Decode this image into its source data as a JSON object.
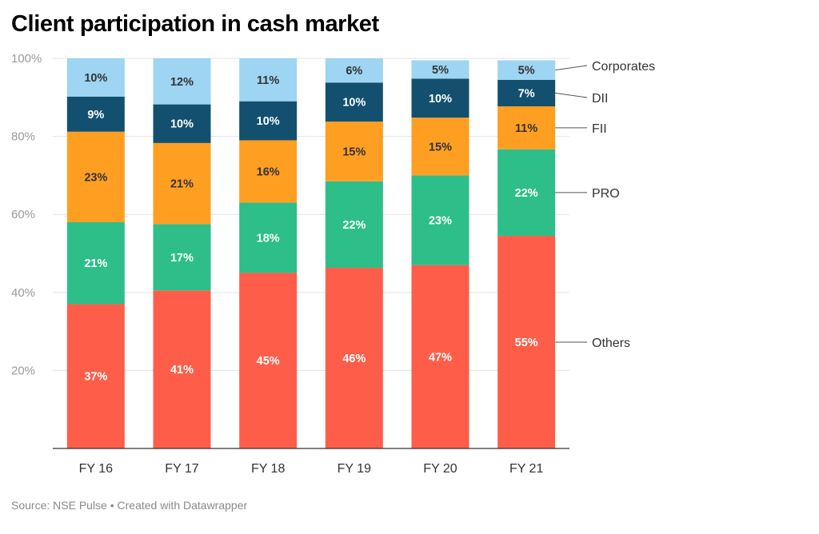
{
  "title": "Client participation in cash market",
  "footer": "Source: NSE Pulse • Created with Datawrapper",
  "chart_data": {
    "type": "bar",
    "stacked": true,
    "categories": [
      "FY 16",
      "FY 17",
      "FY 18",
      "FY 19",
      "FY 20",
      "FY 21"
    ],
    "ylim": [
      0,
      100
    ],
    "yticks": [
      20,
      40,
      60,
      80,
      100
    ],
    "ytick_labels": [
      "20%",
      "40%",
      "60%",
      "80%",
      "100%"
    ],
    "grid": true,
    "legend_placement": "right, labels aligned to series in last bar",
    "series": [
      {
        "name": "Others",
        "color": "#fe5e49",
        "label_color": "#ffffff",
        "values": [
          37,
          40.5,
          45,
          46.3,
          47,
          54.5
        ],
        "labels": [
          "37%",
          "41%",
          "45%",
          "46%",
          "47%",
          "55%"
        ]
      },
      {
        "name": "PRO",
        "color": "#2dbe8a",
        "label_color": "#ffffff",
        "values": [
          21,
          17,
          18,
          22.2,
          23,
          22.2
        ],
        "labels": [
          "21%",
          "17%",
          "18%",
          "22%",
          "23%",
          "22%"
        ]
      },
      {
        "name": "FII",
        "color": "#fe9f22",
        "label_color": "#333333",
        "values": [
          23.2,
          20.8,
          16,
          15.3,
          14.8,
          11
        ],
        "labels": [
          "23%",
          "21%",
          "16%",
          "15%",
          "15%",
          "11%"
        ]
      },
      {
        "name": "DII",
        "color": "#13506f",
        "label_color": "#ffffff",
        "values": [
          9,
          9.9,
          10,
          10,
          10,
          6.8
        ],
        "labels": [
          "9%",
          "10%",
          "10%",
          "10%",
          "10%",
          "7%"
        ]
      },
      {
        "name": "Corporates",
        "color": "#9dd5f2",
        "label_color": "#333333",
        "values": [
          9.8,
          11.8,
          11,
          6.2,
          4.7,
          5
        ],
        "labels": [
          "10%",
          "12%",
          "11%",
          "6%",
          "5%",
          "5%"
        ]
      }
    ]
  }
}
